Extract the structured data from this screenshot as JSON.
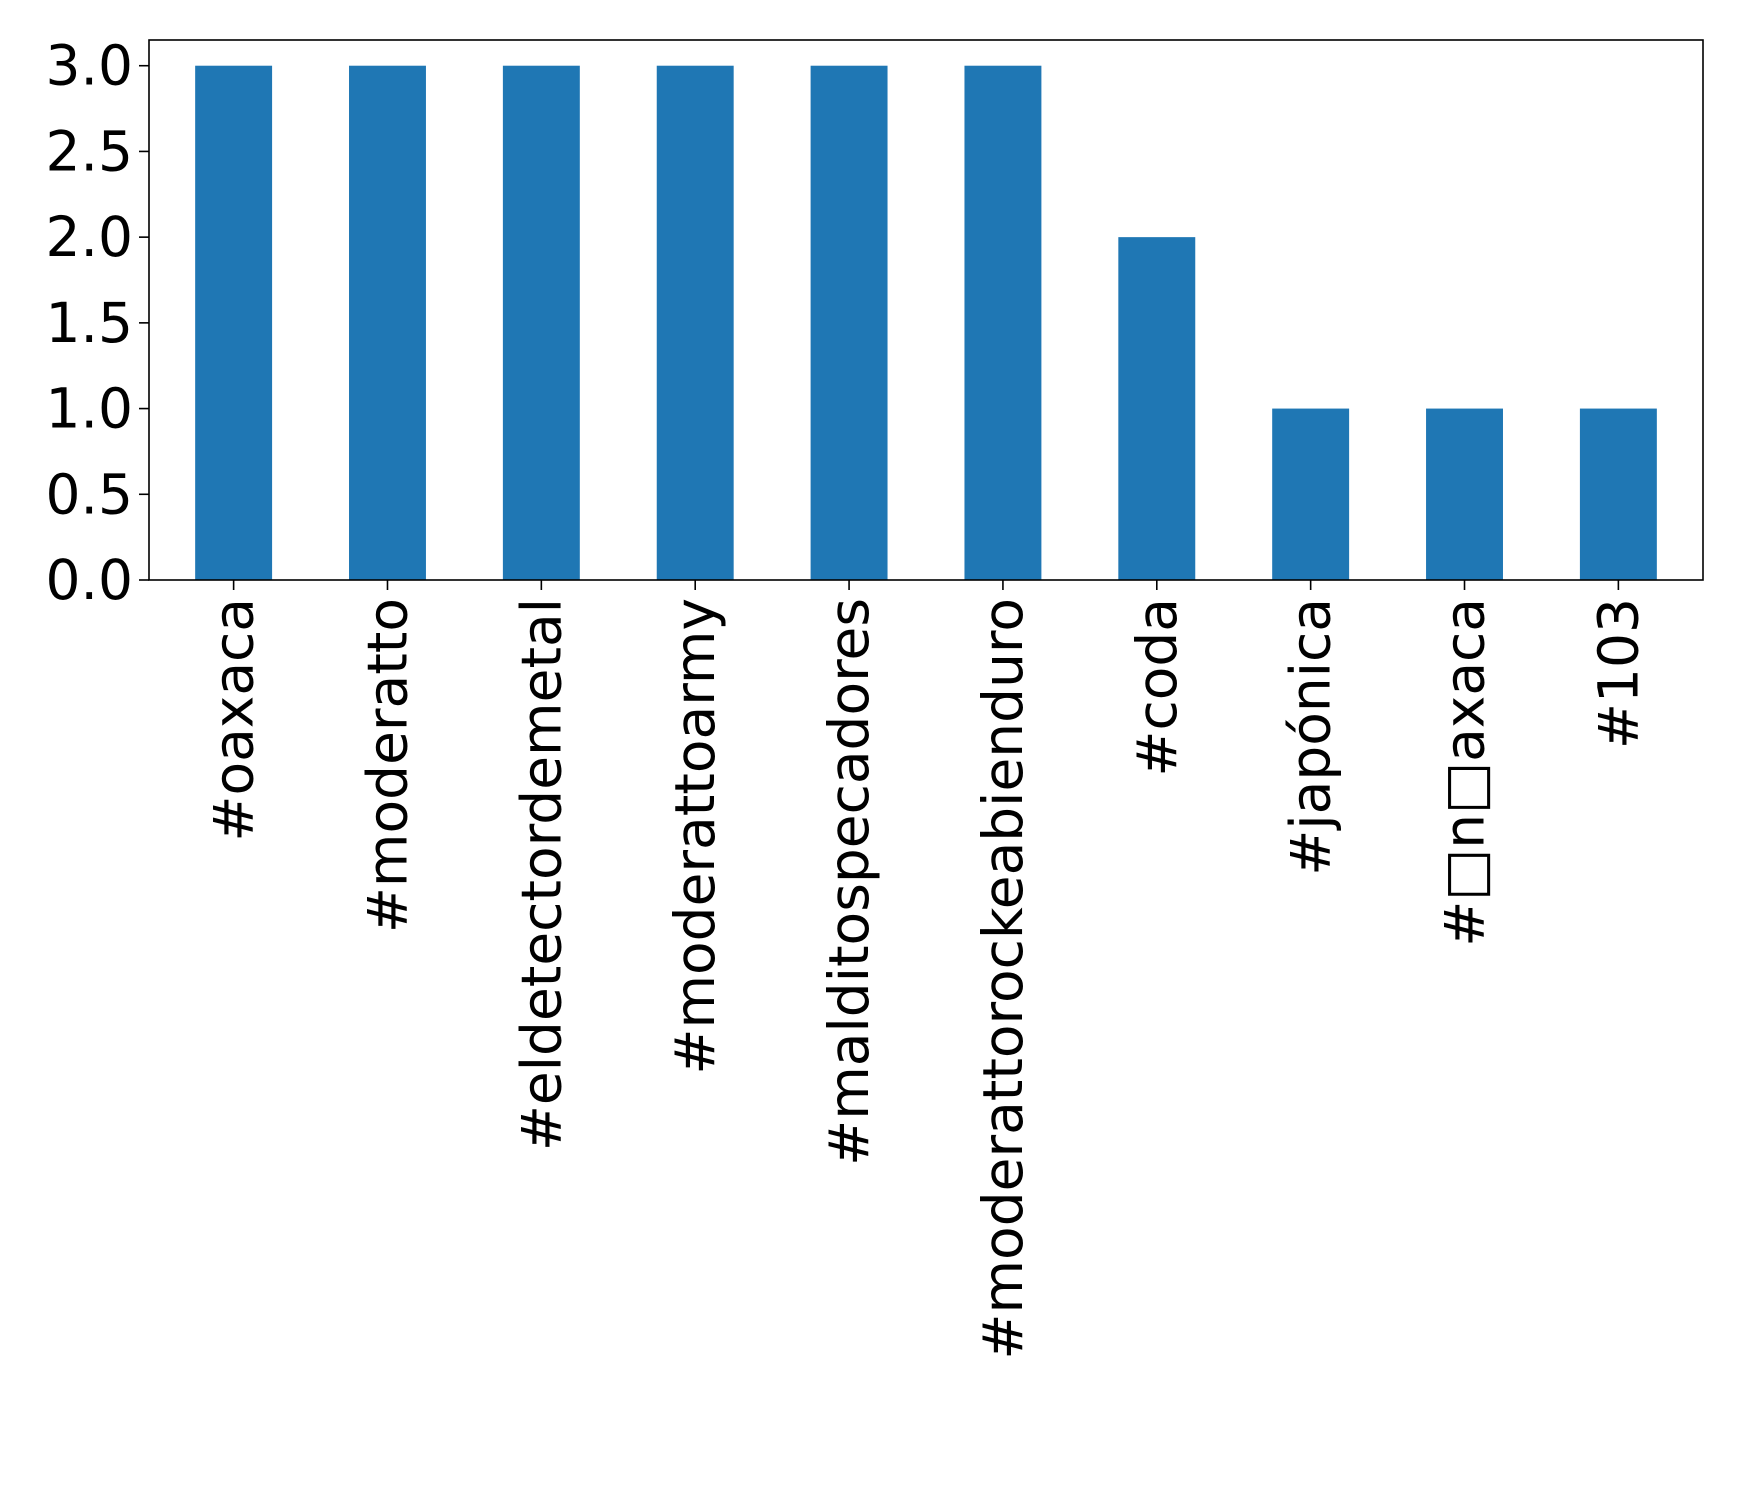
{
  "chart_data": {
    "type": "bar",
    "categories": [
      "#oaxaca",
      "#moderatto",
      "#eldetectordemetal",
      "#moderattoarmy",
      "#malditospecadores",
      "#moderattorockeabienduro",
      "#coda",
      "#japónica",
      "#□n□axaca",
      "#103"
    ],
    "values": [
      3,
      3,
      3,
      3,
      3,
      3,
      2,
      1,
      1,
      1
    ],
    "ylim": [
      0,
      3.15
    ],
    "yticks": [
      "0.0",
      "0.5",
      "1.0",
      "1.5",
      "2.0",
      "2.5",
      "3.0"
    ],
    "bar_color": "#1f77b4",
    "grid": false,
    "legend": "none"
  }
}
